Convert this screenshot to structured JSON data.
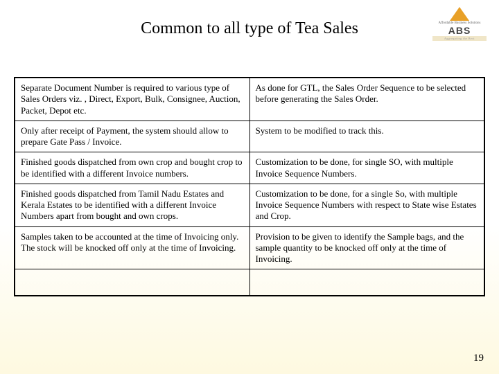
{
  "title": "Common to all type of Tea Sales",
  "logo": {
    "subline": "Affordable Business Solutions",
    "main": "ABS",
    "tagline": "Aggregating the Best"
  },
  "table": {
    "column_widths": [
      "50%",
      "50%"
    ],
    "rows": [
      {
        "left": "Separate Document Number is required to various type of Sales Orders viz. , Direct, Export, Bulk, Consignee, Auction, Packet, Depot etc.",
        "right": "As done for GTL, the Sales Order Sequence to be selected before generating the Sales Order."
      },
      {
        "left": "Only after receipt of Payment, the system should allow to prepare Gate Pass / Invoice.",
        "right": "System to be modified to track this."
      },
      {
        "left": "Finished goods dispatched from own crop and bought crop to be identified with a different Invoice numbers.",
        "right": "Customization to be done, for single SO, with multiple Invoice Sequence Numbers."
      },
      {
        "left": "Finished goods dispatched from Tamil Nadu Estates and Kerala Estates to be identified with a different Invoice Numbers apart from bought and own crops.",
        "right": "Customization to be done, for a single So, with multiple Invoice Sequence Numbers with respect to State wise Estates and Crop."
      },
      {
        "left": "Samples taken to be accounted at the time of Invoicing only. The stock will be knocked off only at the time of Invoicing.",
        "right": "Provision to be given to identify the Sample bags, and the sample quantity to be knocked off only at the time of Invoicing."
      },
      {
        "left": "",
        "right": ""
      }
    ]
  },
  "page_number": "19",
  "colors": {
    "bg_top": "#ffffff",
    "bg_bottom": "#fef9e0",
    "border": "#000000",
    "text": "#000000",
    "logo_triangle": "#e8a028"
  }
}
